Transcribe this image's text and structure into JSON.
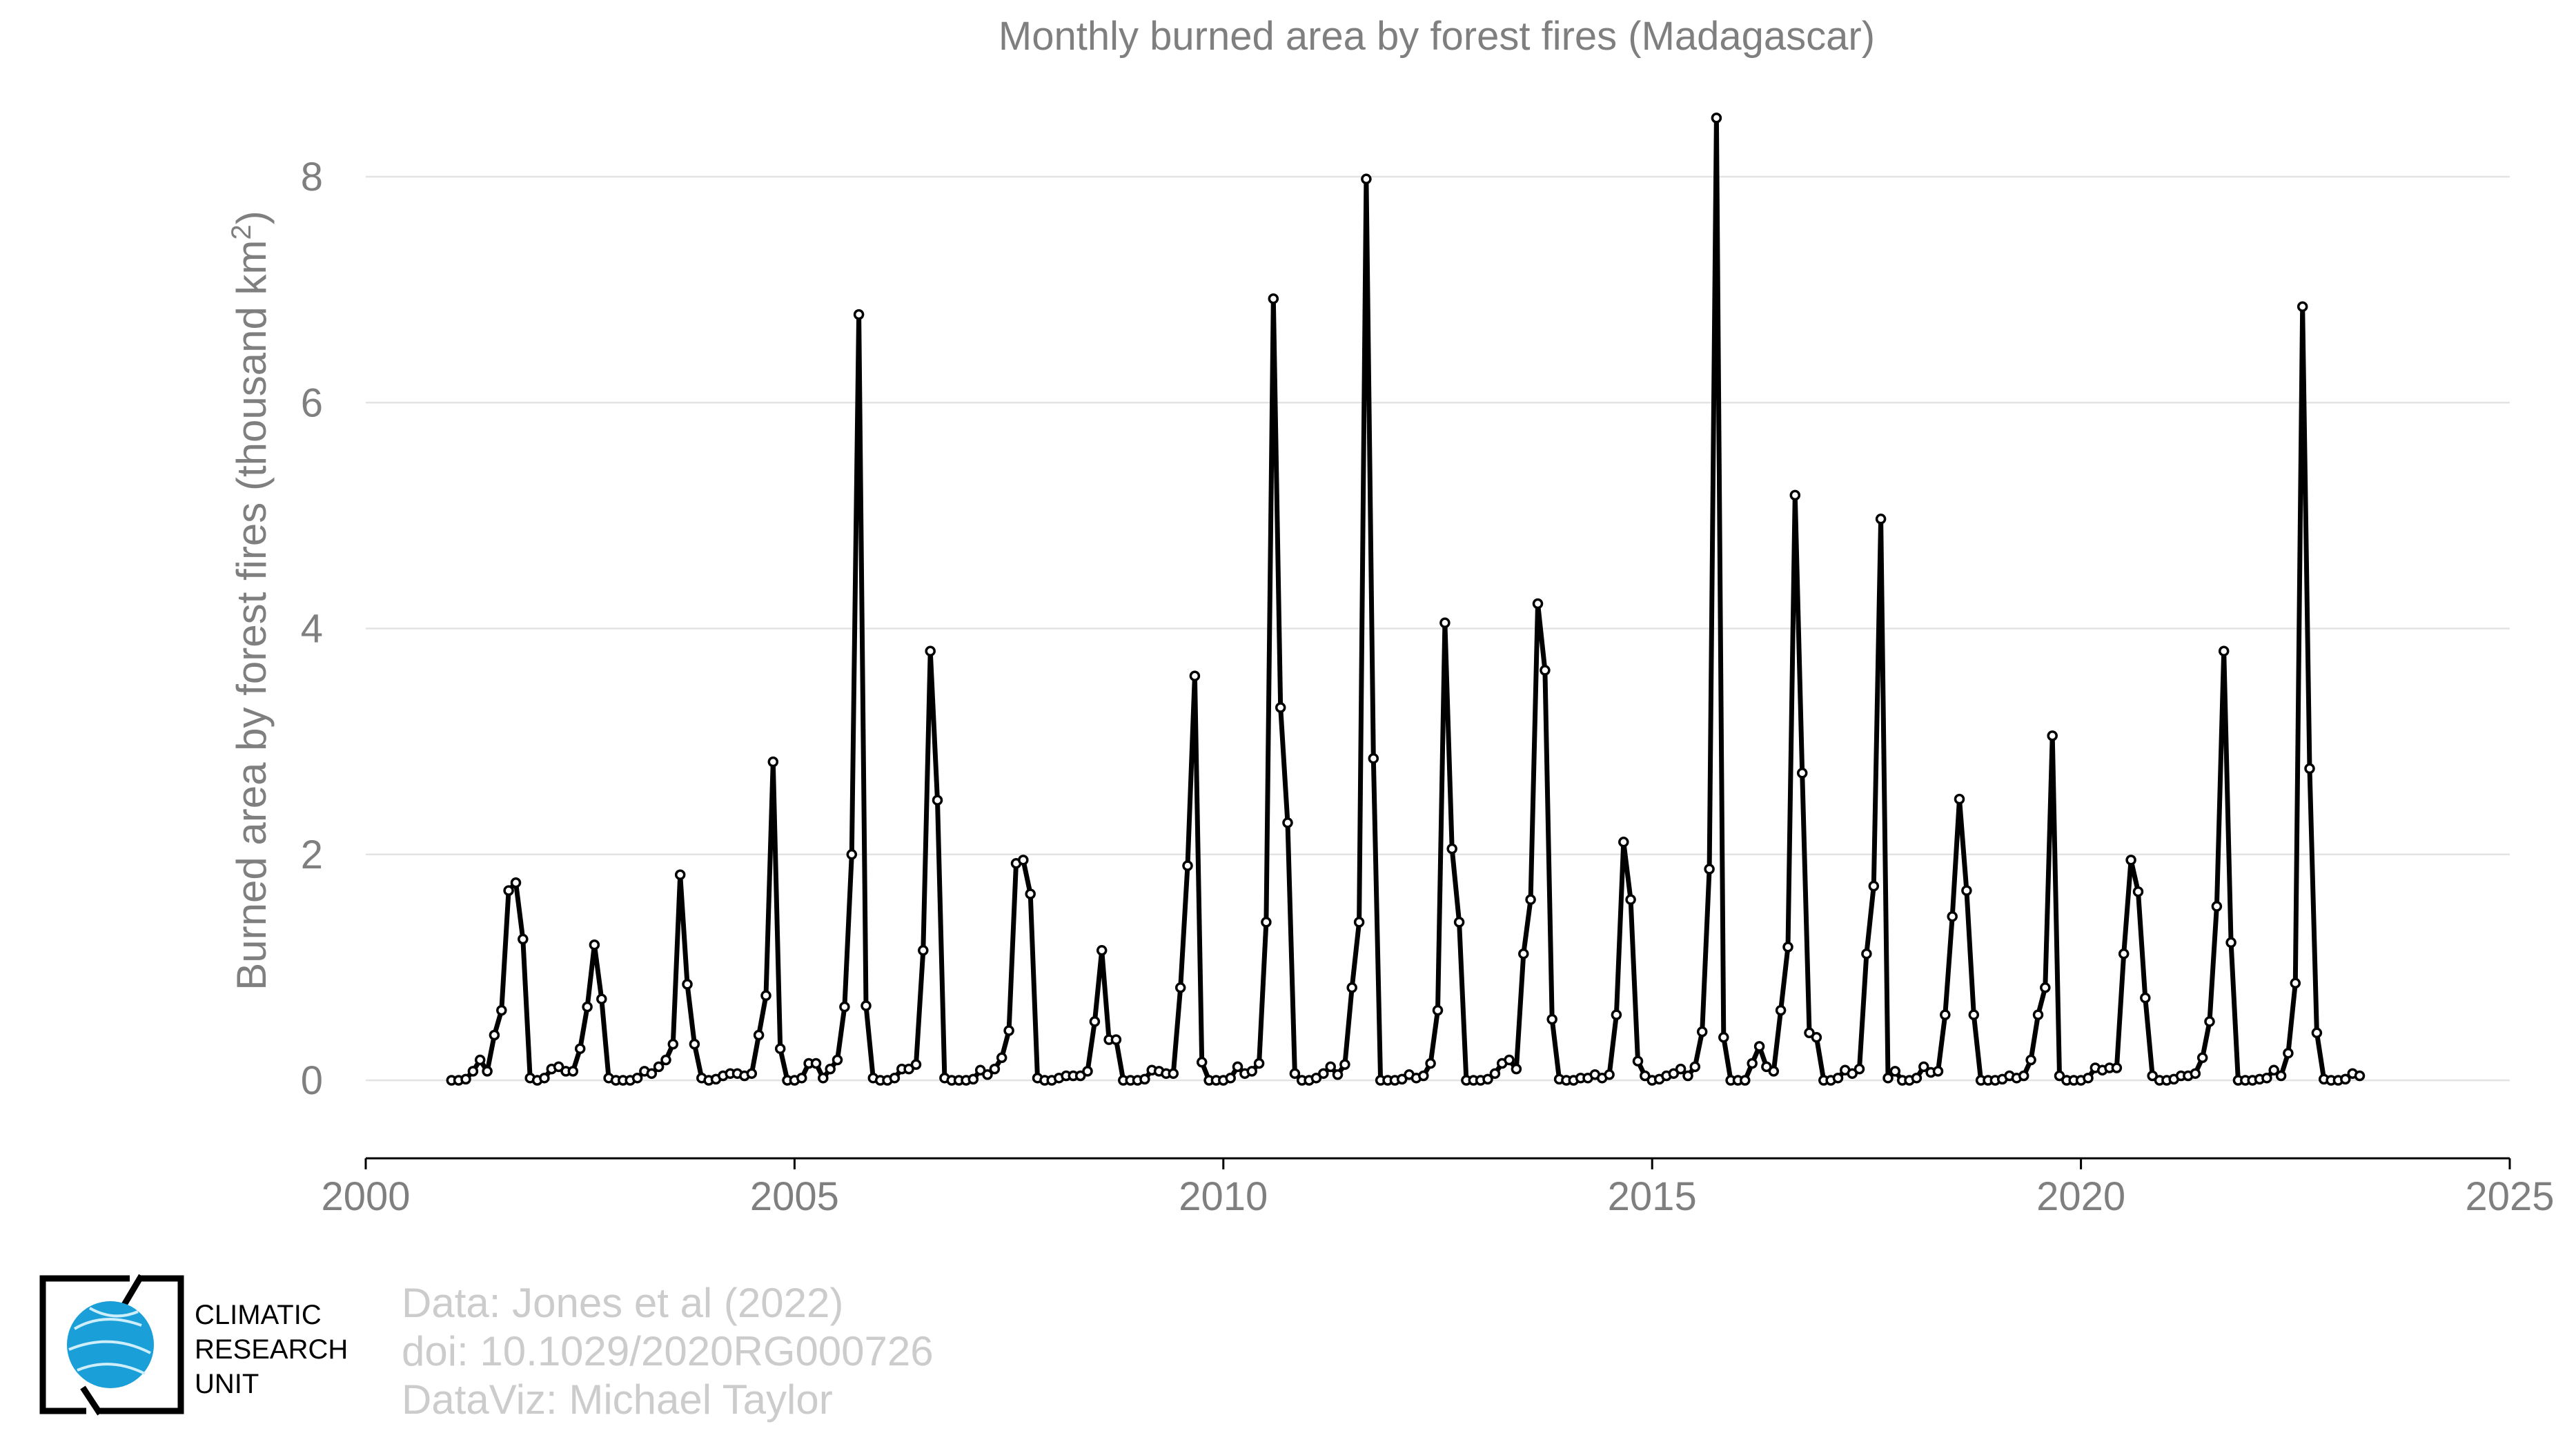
{
  "chart_data": {
    "type": "line",
    "title": "Monthly burned area by forest fires (Madagascar)",
    "ylabel_prefix": "Burned area by forest fires (thousand km",
    "ylabel_sup": "2",
    "ylabel_suffix": ")",
    "xlabel": "",
    "xlim": [
      2000,
      2025
    ],
    "ylim": [
      -0.7,
      8.8
    ],
    "xticks": [
      2000,
      2005,
      2010,
      2015,
      2020,
      2025
    ],
    "yticks": [
      0,
      2,
      4,
      6,
      8
    ],
    "grid": true,
    "legend": "none",
    "series_color": "#000000",
    "start": [
      2001,
      1
    ],
    "values": [
      0.0,
      0.0,
      0.01,
      0.08,
      0.18,
      0.08,
      0.4,
      0.62,
      1.68,
      1.75,
      1.25,
      0.02,
      0.0,
      0.02,
      0.1,
      0.12,
      0.08,
      0.08,
      0.28,
      0.65,
      1.2,
      0.72,
      0.02,
      0.0,
      0.0,
      0.0,
      0.02,
      0.08,
      0.06,
      0.12,
      0.18,
      0.32,
      1.82,
      0.85,
      0.32,
      0.02,
      0.0,
      0.01,
      0.04,
      0.06,
      0.06,
      0.04,
      0.06,
      0.4,
      0.75,
      2.82,
      0.28,
      0.0,
      0.0,
      0.02,
      0.15,
      0.15,
      0.02,
      0.1,
      0.18,
      0.65,
      2.0,
      6.78,
      0.66,
      0.02,
      0.0,
      0.0,
      0.02,
      0.1,
      0.1,
      0.14,
      1.15,
      3.8,
      2.48,
      0.02,
      0.0,
      0.0,
      0.0,
      0.01,
      0.09,
      0.05,
      0.1,
      0.2,
      0.44,
      1.92,
      1.95,
      1.65,
      0.02,
      0.0,
      0.0,
      0.02,
      0.04,
      0.04,
      0.04,
      0.08,
      0.52,
      1.15,
      0.36,
      0.36,
      0.0,
      0.0,
      0.0,
      0.01,
      0.09,
      0.08,
      0.06,
      0.06,
      0.82,
      1.9,
      3.58,
      0.16,
      0.0,
      0.0,
      0.0,
      0.02,
      0.12,
      0.06,
      0.08,
      0.15,
      1.4,
      6.92,
      3.3,
      2.28,
      0.06,
      0.0,
      0.0,
      0.02,
      0.06,
      0.12,
      0.05,
      0.14,
      0.82,
      1.4,
      7.98,
      2.85,
      0.0,
      0.0,
      0.0,
      0.01,
      0.05,
      0.02,
      0.04,
      0.15,
      0.62,
      4.05,
      2.05,
      1.4,
      0.0,
      0.0,
      0.0,
      0.01,
      0.06,
      0.15,
      0.18,
      0.1,
      1.12,
      1.6,
      4.22,
      3.63,
      0.54,
      0.01,
      0.0,
      0.0,
      0.02,
      0.02,
      0.05,
      0.02,
      0.05,
      0.58,
      2.11,
      1.6,
      0.17,
      0.04,
      0.0,
      0.01,
      0.04,
      0.06,
      0.1,
      0.04,
      0.12,
      0.43,
      1.87,
      8.52,
      0.38,
      0.0,
      0.0,
      0.0,
      0.15,
      0.3,
      0.12,
      0.08,
      0.62,
      1.18,
      5.18,
      2.72,
      0.42,
      0.38,
      0.0,
      0.0,
      0.02,
      0.09,
      0.06,
      0.1,
      1.12,
      1.72,
      4.97,
      0.02,
      0.08,
      0.0,
      0.0,
      0.02,
      0.12,
      0.07,
      0.08,
      0.58,
      1.45,
      2.49,
      1.68,
      0.58,
      0.0,
      0.0,
      0.0,
      0.01,
      0.04,
      0.02,
      0.04,
      0.18,
      0.58,
      0.82,
      3.05,
      0.04,
      0.0,
      0.0,
      0.0,
      0.02,
      0.11,
      0.09,
      0.11,
      0.11,
      1.12,
      1.95,
      1.67,
      0.73,
      0.04,
      0.0,
      0.0,
      0.01,
      0.04,
      0.04,
      0.06,
      0.2,
      0.52,
      1.54,
      3.8,
      1.22,
      0.0,
      0.0,
      0.0,
      0.01,
      0.02,
      0.09,
      0.04,
      0.24,
      0.86,
      6.85,
      2.76,
      0.42,
      0.01,
      0.0,
      0.0,
      0.01,
      0.06,
      0.04
    ]
  },
  "credits": {
    "line1": "Data: Jones et al (2022)",
    "line2": "doi: 10.1029/2020RG000726",
    "line3": "DataViz: Michael Taylor"
  },
  "logo": {
    "line1": "CLIMATIC",
    "line2": "RESEARCH",
    "line3": "UNIT",
    "accent": "#1a9fd9"
  }
}
